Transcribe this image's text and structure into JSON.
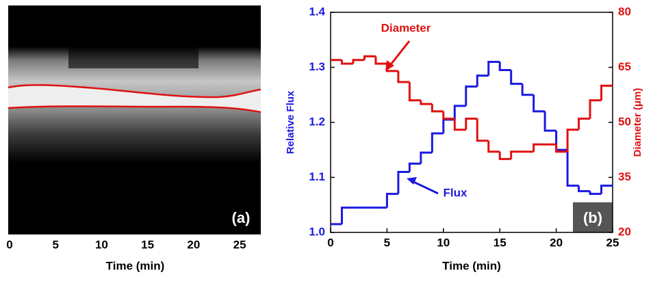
{
  "chart_data": [
    {
      "type": "image",
      "label": "(a)",
      "xlabel": "Time (min)",
      "xlim": [
        0,
        27.3
      ],
      "xticks": [
        0,
        5,
        10,
        15,
        20,
        25
      ]
    },
    {
      "type": "step",
      "label": "(b)",
      "xlabel": "Time (min)",
      "ylabel": "Relative Flux",
      "y2label": "Diameter (μm)",
      "xlim": [
        0,
        25
      ],
      "xticks": [
        0,
        5,
        10,
        15,
        20,
        25
      ],
      "ylim": [
        1.0,
        1.4
      ],
      "yticks": [
        {
          "value": 1.0,
          "label": "1.0"
        },
        1.1,
        1.2,
        1.3,
        1.4
      ],
      "y2lim": [
        20,
        80
      ],
      "y2ticks": [
        20,
        35,
        50,
        65,
        80
      ],
      "x": [
        0,
        1,
        2,
        3,
        4,
        5,
        6,
        7,
        8,
        9,
        10,
        11,
        12,
        13,
        14,
        15,
        16,
        17,
        18,
        19,
        20,
        21,
        22,
        23,
        24
      ],
      "series": [
        {
          "name": "Flux",
          "color": "#1a1ae0",
          "values": [
            1.015,
            1.045,
            1.045,
            1.045,
            1.045,
            1.07,
            1.11,
            1.125,
            1.145,
            1.18,
            1.205,
            1.23,
            1.265,
            1.285,
            1.31,
            1.295,
            1.27,
            1.25,
            1.22,
            1.185,
            1.15,
            1.085,
            1.075,
            1.07,
            1.085
          ]
        },
        {
          "name": "Diameter",
          "color": "#e01010",
          "axis": "y2",
          "values": [
            67,
            66,
            67,
            68,
            66,
            64,
            61,
            56,
            55,
            53,
            51,
            48,
            51,
            45,
            42,
            40,
            42,
            42,
            44,
            44,
            42,
            48,
            51,
            56,
            60
          ]
        }
      ]
    }
  ]
}
